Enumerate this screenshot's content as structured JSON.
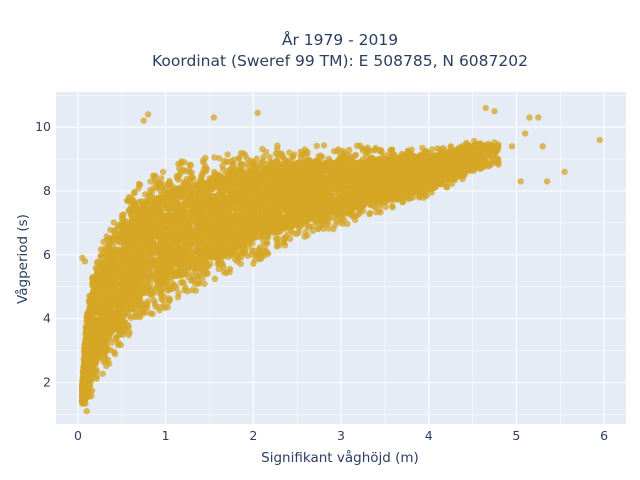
{
  "chart_data": {
    "type": "scatter",
    "title_line1": "År 1979 - 2019",
    "title_line2": "Koordinat (Sweref 99 TM): E 508785, N 6087202",
    "xlabel": "Signifikant våghöjd (m)",
    "ylabel": "Vågperiod (s)",
    "xlim": [
      -0.25,
      6.25
    ],
    "ylim": [
      0.7,
      11.1
    ],
    "x_ticks": [
      0,
      1,
      2,
      3,
      4,
      5,
      6
    ],
    "x_tick_labels": [
      "0",
      "1",
      "2",
      "3",
      "4",
      "5",
      "6"
    ],
    "y_ticks": [
      2,
      4,
      6,
      8,
      10
    ],
    "y_tick_labels": [
      "2",
      "4",
      "6",
      "8",
      "10"
    ],
    "grid": true,
    "legend": "none",
    "colors": {
      "marker": "#d4a625",
      "plot_bg": "#e5ecf6",
      "grid": "#ffffff",
      "text": "#2a3f5f"
    },
    "density_envelope": {
      "description_points": "upper and lower bounds of the dense point cloud (x in m, y in s)",
      "upper": [
        [
          0.05,
          2.0
        ],
        [
          0.1,
          4.4
        ],
        [
          0.2,
          6.0
        ],
        [
          0.4,
          7.2
        ],
        [
          0.6,
          8.2
        ],
        [
          0.8,
          8.6
        ],
        [
          1.0,
          8.8
        ],
        [
          1.5,
          9.3
        ],
        [
          2.0,
          9.4
        ],
        [
          2.5,
          9.5
        ],
        [
          3.0,
          9.5
        ],
        [
          3.5,
          9.4
        ],
        [
          4.0,
          9.4
        ],
        [
          4.5,
          9.6
        ],
        [
          4.8,
          9.6
        ]
      ],
      "lower": [
        [
          0.05,
          1.3
        ],
        [
          0.1,
          1.2
        ],
        [
          0.2,
          1.8
        ],
        [
          0.4,
          2.7
        ],
        [
          0.6,
          3.3
        ],
        [
          0.8,
          3.8
        ],
        [
          1.0,
          4.2
        ],
        [
          1.5,
          5.0
        ],
        [
          2.0,
          5.7
        ],
        [
          2.5,
          6.3
        ],
        [
          3.0,
          6.8
        ],
        [
          3.5,
          7.3
        ],
        [
          4.0,
          7.8
        ],
        [
          4.5,
          8.5
        ],
        [
          4.8,
          8.8
        ]
      ]
    },
    "outliers": [
      {
        "x": 5.95,
        "y": 9.6
      },
      {
        "x": 5.55,
        "y": 8.6
      },
      {
        "x": 5.35,
        "y": 8.3
      },
      {
        "x": 5.3,
        "y": 9.4
      },
      {
        "x": 5.25,
        "y": 10.3
      },
      {
        "x": 5.15,
        "y": 10.3
      },
      {
        "x": 5.05,
        "y": 8.3
      },
      {
        "x": 4.75,
        "y": 10.5
      },
      {
        "x": 4.65,
        "y": 10.6
      },
      {
        "x": 4.95,
        "y": 9.4
      },
      {
        "x": 5.1,
        "y": 9.8
      },
      {
        "x": 2.05,
        "y": 10.45
      },
      {
        "x": 1.55,
        "y": 10.3
      },
      {
        "x": 0.8,
        "y": 10.4
      },
      {
        "x": 0.75,
        "y": 10.2
      },
      {
        "x": 0.05,
        "y": 5.9
      },
      {
        "x": 0.08,
        "y": 5.8
      },
      {
        "x": 0.07,
        "y": 1.5
      },
      {
        "x": 0.1,
        "y": 1.1
      }
    ]
  }
}
